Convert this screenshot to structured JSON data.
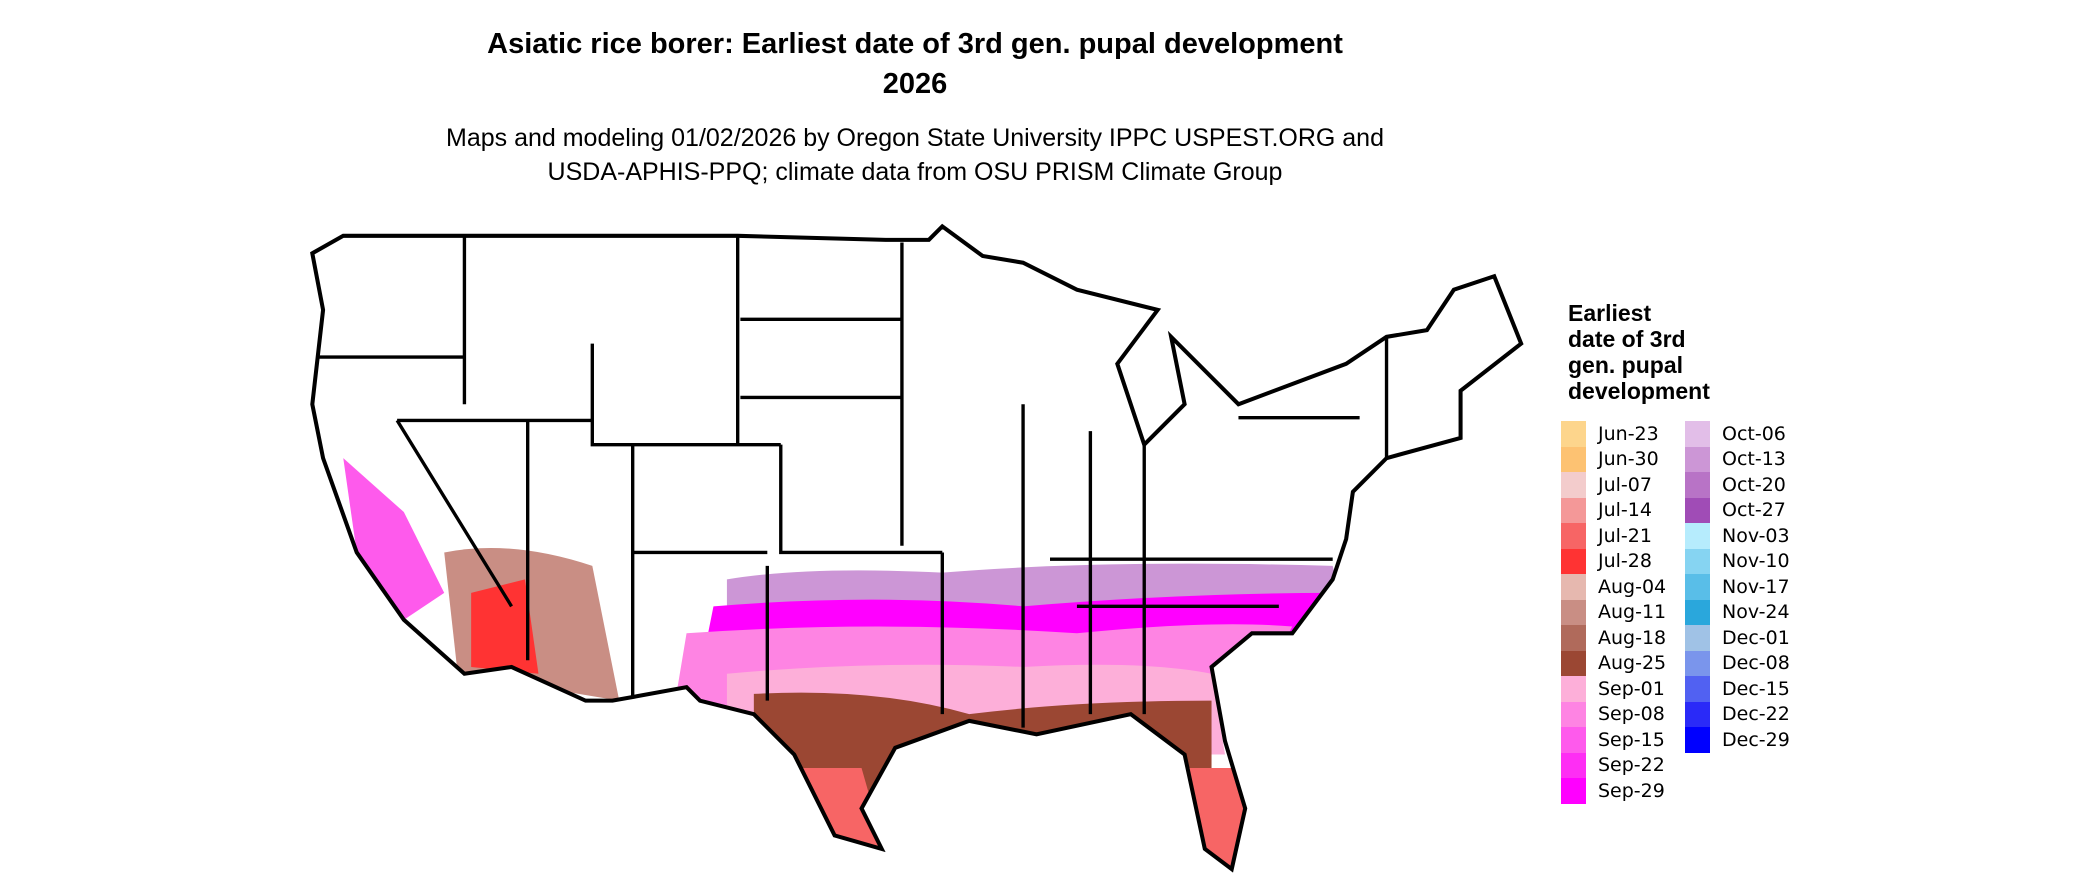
{
  "title": {
    "line1": "Asiatic rice borer: Earliest date of 3rd gen. pupal development",
    "line2": "2026"
  },
  "subtitle": {
    "line1": "Maps and modeling 01/02/2026 by Oregon State University IPPC USPEST.ORG and",
    "line2": "USDA-APHIS-PPQ; climate data from OSU PRISM Climate Group"
  },
  "legend": {
    "title_lines": [
      "Earliest",
      "date of 3rd",
      "gen. pupal",
      "development"
    ],
    "columns": [
      [
        {
          "label": "Jun-23",
          "color": "#FDD58C"
        },
        {
          "label": "Jun-30",
          "color": "#FDC272"
        },
        {
          "label": "Jul-07",
          "color": "#F3CCCC"
        },
        {
          "label": "Jul-14",
          "color": "#F49898"
        },
        {
          "label": "Jul-21",
          "color": "#F76565"
        },
        {
          "label": "Jul-28",
          "color": "#FF3333"
        },
        {
          "label": "Aug-04",
          "color": "#E6B8AF"
        },
        {
          "label": "Aug-11",
          "color": "#C98E84"
        },
        {
          "label": "Aug-18",
          "color": "#B06A5B"
        },
        {
          "label": "Aug-25",
          "color": "#9B4733"
        },
        {
          "label": "Sep-01",
          "color": "#FDAFD9"
        },
        {
          "label": "Sep-08",
          "color": "#FE84E3"
        },
        {
          "label": "Sep-15",
          "color": "#FE5AEC"
        },
        {
          "label": "Sep-22",
          "color": "#FE2EF4"
        },
        {
          "label": "Sep-29",
          "color": "#FF00FF"
        }
      ],
      [
        {
          "label": "Oct-06",
          "color": "#E2BEE8"
        },
        {
          "label": "Oct-13",
          "color": "#CC96D6"
        },
        {
          "label": "Oct-20",
          "color": "#B873C6"
        },
        {
          "label": "Oct-27",
          "color": "#A04CB6"
        },
        {
          "label": "Nov-03",
          "color": "#B6ECFD"
        },
        {
          "label": "Nov-10",
          "color": "#86D4F2"
        },
        {
          "label": "Nov-17",
          "color": "#59BEE8"
        },
        {
          "label": "Nov-24",
          "color": "#2AA7DC"
        },
        {
          "label": "Dec-01",
          "color": "#A0C2E6"
        },
        {
          "label": "Dec-08",
          "color": "#7A95EC"
        },
        {
          "label": "Dec-15",
          "color": "#5161F2"
        },
        {
          "label": "Dec-22",
          "color": "#2A2AF8"
        },
        {
          "label": "Dec-29",
          "color": "#0000FF"
        }
      ]
    ]
  }
}
